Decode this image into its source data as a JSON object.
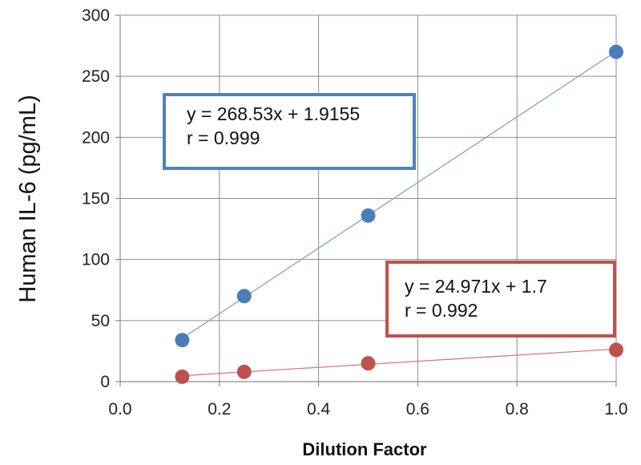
{
  "chart_data": {
    "type": "scatter",
    "title": "",
    "xlabel": "Dilution Factor",
    "ylabel": "Human IL-6 (pg/mL)",
    "xlim": [
      0.0,
      1.0
    ],
    "ylim": [
      0,
      300
    ],
    "x_ticks": [
      0.0,
      0.2,
      0.4,
      0.6,
      0.8,
      1.0
    ],
    "x_tick_labels": [
      "0.0",
      "0.2",
      "0.4",
      "0.6",
      "0.8",
      "1.0"
    ],
    "y_ticks": [
      0,
      50,
      100,
      150,
      200,
      250,
      300
    ],
    "y_tick_labels": [
      "0",
      "50",
      "100",
      "150",
      "200",
      "250",
      "300"
    ],
    "grid": {
      "horizontal": true,
      "vertical": true
    },
    "series": [
      {
        "color": "#4a7ebb",
        "line_color": "#7fa4d1",
        "x": [
          0.125,
          0.25,
          0.5,
          1.0
        ],
        "y": [
          34,
          70,
          136,
          270
        ],
        "trendline": {
          "slope": 268.53,
          "intercept": 1.9155
        },
        "annotation": {
          "lines": [
            "y = 268.53x + 1.9155",
            "r = 0.999"
          ],
          "border_color": "#4f81bd"
        }
      },
      {
        "color": "#c0504d",
        "line_color": "#d27c7a",
        "x": [
          0.125,
          0.25,
          0.5,
          1.0
        ],
        "y": [
          4,
          8,
          15,
          26
        ],
        "trendline": {
          "slope": 24.971,
          "intercept": 1.7
        },
        "annotation": {
          "lines": [
            "y = 24.971x + 1.7",
            "r = 0.992"
          ],
          "border_color": "#c0504d"
        }
      }
    ]
  }
}
